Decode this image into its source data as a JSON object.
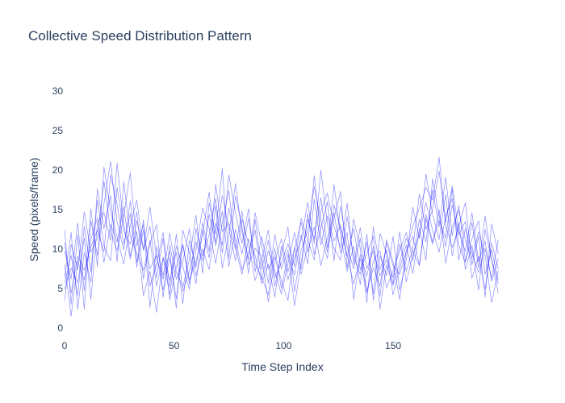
{
  "chart_data": {
    "type": "line",
    "title": "Collective Speed Distribution Pattern",
    "xlabel": "Time Step Index",
    "ylabel": "Speed (pixels/frame)",
    "xlim": [
      0,
      199
    ],
    "ylim": [
      0,
      30
    ],
    "x_ticks": [
      0,
      50,
      100,
      150
    ],
    "y_ticks": [
      0,
      5,
      10,
      15,
      20,
      25,
      30
    ],
    "grid": false,
    "legend": "none",
    "line_color": "#0000ff",
    "line_opacity": 0.45,
    "x": [
      0,
      3,
      6,
      9,
      12,
      15,
      18,
      21,
      24,
      27,
      30,
      33,
      36,
      39,
      42,
      45,
      48,
      51,
      54,
      57,
      60,
      63,
      66,
      69,
      72,
      75,
      78,
      81,
      84,
      87,
      90,
      93,
      96,
      99,
      102,
      105,
      108,
      111,
      114,
      117,
      120,
      123,
      126,
      129,
      132,
      135,
      138,
      141,
      144,
      147,
      150,
      153,
      156,
      159,
      162,
      165,
      168,
      171,
      174,
      177,
      180,
      183,
      186,
      189,
      192,
      195,
      198
    ],
    "series": [
      {
        "values": [
          12.5,
          3.0,
          11.8,
          2.4,
          13.6,
          9.2,
          15.7,
          21.1,
          13.4,
          9.9,
          16.1,
          8.3,
          12.4,
          7.5,
          9.2,
          4.8,
          8.9,
          3.7,
          10.6,
          6.1,
          8.4,
          11.9,
          17.2,
          10.4,
          14.8,
          7.8,
          12.5,
          9.4,
          13.9,
          8.1,
          6.4,
          4.2,
          10.1,
          5.0,
          9.3,
          6.7,
          11.8,
          8.1,
          16.3,
          10.5,
          14.2,
          11.0,
          13.0,
          9.1,
          5.6,
          8.8,
          4.7,
          7.6,
          5.3,
          10.8,
          7.9,
          6.8,
          9.7,
          12.9,
          15.2,
          17.8,
          16.2,
          21.6,
          13.4,
          18.0,
          12.2,
          9.7,
          14.6,
          8.4,
          11.0,
          5.9,
          8.8
        ]
      },
      {
        "values": [
          5.6,
          9.2,
          4.1,
          12.9,
          7.1,
          16.2,
          10.4,
          8.5,
          17.8,
          12.3,
          10.6,
          14.7,
          6.2,
          11.1,
          5.3,
          8.9,
          4.2,
          10.4,
          7.8,
          4.9,
          12.6,
          9.1,
          11.8,
          16.4,
          9.5,
          15.2,
          11.1,
          7.4,
          9.5,
          12.4,
          6.1,
          9.8,
          7.2,
          4.3,
          8.2,
          12.1,
          7.4,
          14.5,
          9.3,
          12.6,
          16.0,
          8.5,
          15.4,
          10.3,
          7.5,
          11.4,
          4.4,
          8.5,
          9.8,
          5.1,
          7.2,
          9.8,
          12.1,
          8.5,
          13.8,
          10.9,
          17.5,
          12.8,
          19.1,
          11.7,
          15.5,
          8.5,
          11.3,
          13.6,
          6.8,
          9.9,
          6.1
        ]
      },
      {
        "values": [
          8.1,
          1.5,
          8.5,
          6.1,
          11.2,
          14.0,
          8.3,
          13.1,
          10.9,
          15.4,
          9.1,
          12.2,
          4.1,
          7.2,
          2.0,
          9.0,
          6.1,
          9.6,
          3.1,
          11.1,
          7.7,
          13.3,
          9.7,
          18.2,
          12.2,
          13.3,
          10.0,
          14.8,
          8.0,
          10.1,
          9.1,
          3.3,
          8.5,
          11.3,
          7.1,
          10.0,
          13.4,
          9.6,
          12.8,
          7.9,
          11.4,
          14.6,
          9.5,
          12.1,
          3.6,
          9.3,
          6.6,
          10.4,
          2.4,
          8.0,
          5.4,
          8.4,
          11.4,
          9.7,
          7.9,
          13.9,
          10.6,
          15.0,
          8.2,
          12.8,
          14.9,
          11.1,
          8.8,
          12.2,
          9.2,
          3.2,
          7.3
        ]
      },
      {
        "values": [
          3.4,
          10.6,
          7.4,
          14.7,
          9.6,
          11.4,
          18.6,
          12.2,
          9.8,
          14.2,
          19.7,
          10.4,
          13.1,
          2.6,
          10.3,
          6.6,
          12.0,
          7.1,
          5.2,
          8.7,
          14.3,
          6.9,
          15.9,
          11.9,
          20.2,
          8.8,
          16.7,
          12.9,
          6.9,
          13.8,
          7.4,
          11.1,
          5.3,
          9.4,
          12.8,
          4.6,
          9.9,
          12.3,
          17.9,
          13.7,
          9.6,
          18.2,
          11.8,
          7.2,
          10.4,
          5.5,
          11.9,
          3.5,
          9.2,
          6.6,
          11.6,
          4.8,
          8.6,
          15.3,
          11.3,
          19.5,
          14.4,
          11.2,
          16.9,
          9.1,
          13.3,
          7.4,
          10.5,
          4.8,
          12.5,
          8.6,
          4.4
        ]
      },
      {
        "values": [
          9.8,
          6.2,
          13.3,
          4.7,
          15.1,
          7.8,
          20.4,
          14.8,
          11.5,
          8.1,
          13.0,
          16.2,
          9.8,
          12.9,
          6.4,
          11.4,
          3.6,
          7.7,
          10.5,
          5.6,
          9.8,
          15.2,
          12.6,
          8.2,
          13.3,
          17.4,
          10.2,
          6.8,
          11.3,
          9.2,
          5.6,
          8.1,
          3.9,
          10.4,
          6.1,
          8.9,
          11.1,
          15.9,
          10.7,
          20.0,
          13.2,
          10.1,
          8.6,
          14.1,
          9.0,
          6.8,
          10.9,
          4.3,
          12.0,
          9.4,
          4.2,
          7.6,
          10.5,
          6.9,
          12.6,
          8.6,
          18.9,
          14.2,
          10.3,
          15.6,
          11.8,
          13.5,
          6.3,
          9.1,
          4.9,
          10.8,
          7.5
        ]
      },
      {
        "values": [
          6.3,
          12.1,
          2.4,
          9.6,
          5.8,
          17.6,
          12.6,
          16.8,
          8.4,
          18.5,
          11.7,
          9.4,
          7.3,
          10.7,
          13.1,
          3.9,
          10.5,
          6.2,
          8.4,
          12.6,
          6.6,
          10.0,
          7.4,
          13.3,
          10.5,
          19.4,
          14.6,
          10.7,
          15.1,
          7.1,
          11.6,
          7.5,
          9.0,
          6.0,
          3.5,
          10.2,
          6.8,
          10.4,
          19.3,
          11.6,
          8.8,
          15.6,
          12.7,
          9.1,
          12.6,
          7.4,
          9.4,
          11.6,
          4.0,
          11.2,
          8.4,
          3.6,
          9.7,
          11.6,
          8.0,
          14.4,
          10.9,
          13.6,
          11.4,
          17.6,
          8.6,
          12.6,
          9.6,
          7.0,
          10.1,
          6.3,
          11.2
        ]
      },
      {
        "values": [
          10.9,
          4.4,
          9.1,
          7.3,
          10.3,
          12.4,
          9.6,
          19.4,
          15.6,
          10.6,
          14.5,
          7.7,
          13.7,
          5.3,
          8.1,
          12.1,
          5.2,
          11.9,
          4.6,
          7.2,
          10.9,
          8.5,
          14.4,
          10.8,
          16.8,
          12.6,
          8.5,
          13.8,
          10.7,
          6.0,
          8.7,
          12.4,
          6.4,
          8.3,
          10.7,
          7.8,
          13.9,
          11.2,
          8.6,
          14.8,
          17.1,
          12.9,
          10.2,
          15.8,
          8.1,
          12.7,
          7.5,
          9.8,
          6.6,
          8.7,
          6.4,
          10.6,
          7.2,
          10.1,
          17.0,
          12.5,
          15.0,
          19.9,
          13.0,
          10.2,
          12.9,
          15.9,
          8.0,
          11.6,
          3.9,
          13.2,
          9.4
        ]
      },
      {
        "values": [
          4.9,
          7.6,
          5.7,
          11.4,
          3.6,
          13.3,
          14.6,
          11.1,
          20.9,
          13.1,
          8.7,
          13.6,
          10.0,
          15.3,
          8.9,
          6.2,
          9.7,
          2.5,
          12.4,
          9.5,
          5.6,
          12.4,
          8.9,
          15.5,
          7.6,
          11.7,
          18.3,
          12.1,
          8.7,
          14.6,
          10.6,
          5.7,
          11.8,
          7.5,
          9.9,
          2.8,
          8.3,
          13.8,
          11.3,
          16.5,
          10.2,
          13.9,
          17.3,
          7.6,
          13.8,
          10.1,
          3.2,
          12.8,
          7.4,
          9.9,
          5.6,
          12.2,
          5.8,
          9.3,
          11.8,
          15.9,
          12.4,
          9.6,
          14.2,
          16.4,
          10.5,
          8.3,
          13.4,
          7.6,
          14.2,
          8.7,
          5.6
        ]
      }
    ]
  }
}
